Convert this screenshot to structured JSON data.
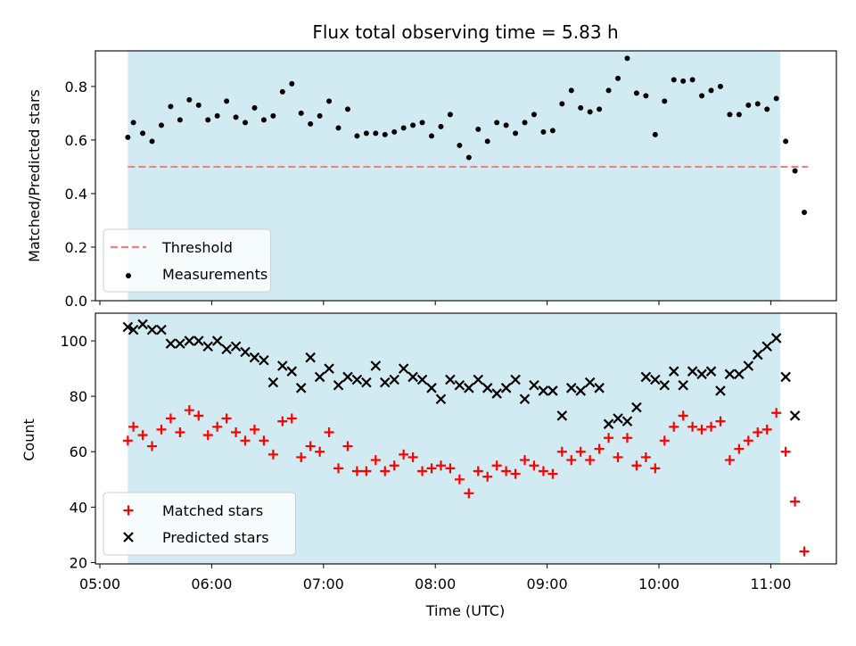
{
  "chart_data": [
    {
      "type": "scatter",
      "title": "Flux total observing time = 5.83 h",
      "ylabel": "Matched/Predicted stars",
      "xlabel": "",
      "ylim": [
        0.0,
        0.933
      ],
      "x_ticks": [
        "05:00",
        "06:00",
        "07:00",
        "08:00",
        "09:00",
        "10:00",
        "11:00"
      ],
      "y_ticks": [
        "0.0",
        "0.2",
        "0.4",
        "0.6",
        "0.8"
      ],
      "shaded_span": {
        "start": "05:15",
        "end": "11:05",
        "color": "#add8e6"
      },
      "legend_position": "lower left",
      "threshold": {
        "name": "Threshold",
        "value": 0.5,
        "color": "#f08080",
        "style": "dashed"
      },
      "series": [
        {
          "name": "Measurements",
          "color": "#000000",
          "marker": "dot",
          "points": [
            [
              "05:15",
              0.61
            ],
            [
              "05:18",
              0.665
            ],
            [
              "05:23",
              0.625
            ],
            [
              "05:28",
              0.595
            ],
            [
              "05:33",
              0.655
            ],
            [
              "05:38",
              0.725
            ],
            [
              "05:43",
              0.675
            ],
            [
              "05:48",
              0.75
            ],
            [
              "05:53",
              0.73
            ],
            [
              "05:58",
              0.675
            ],
            [
              "06:03",
              0.69
            ],
            [
              "06:08",
              0.745
            ],
            [
              "06:13",
              0.685
            ],
            [
              "06:18",
              0.665
            ],
            [
              "06:23",
              0.72
            ],
            [
              "06:28",
              0.675
            ],
            [
              "06:33",
              0.69
            ],
            [
              "06:38",
              0.78
            ],
            [
              "06:43",
              0.81
            ],
            [
              "06:48",
              0.7
            ],
            [
              "06:53",
              0.66
            ],
            [
              "06:58",
              0.69
            ],
            [
              "07:03",
              0.745
            ],
            [
              "07:08",
              0.645
            ],
            [
              "07:13",
              0.715
            ],
            [
              "07:18",
              0.615
            ],
            [
              "07:23",
              0.625
            ],
            [
              "07:28",
              0.625
            ],
            [
              "07:33",
              0.62
            ],
            [
              "07:38",
              0.63
            ],
            [
              "07:43",
              0.645
            ],
            [
              "07:48",
              0.655
            ],
            [
              "07:53",
              0.665
            ],
            [
              "07:58",
              0.615
            ],
            [
              "08:03",
              0.65
            ],
            [
              "08:08",
              0.695
            ],
            [
              "08:13",
              0.58
            ],
            [
              "08:18",
              0.535
            ],
            [
              "08:23",
              0.64
            ],
            [
              "08:28",
              0.595
            ],
            [
              "08:33",
              0.665
            ],
            [
              "08:38",
              0.655
            ],
            [
              "08:43",
              0.625
            ],
            [
              "08:48",
              0.665
            ],
            [
              "08:53",
              0.695
            ],
            [
              "08:58",
              0.63
            ],
            [
              "09:03",
              0.635
            ],
            [
              "09:08",
              0.735
            ],
            [
              "09:13",
              0.785
            ],
            [
              "09:18",
              0.72
            ],
            [
              "09:23",
              0.705
            ],
            [
              "09:28",
              0.715
            ],
            [
              "09:33",
              0.785
            ],
            [
              "09:38",
              0.83
            ],
            [
              "09:43",
              0.905
            ],
            [
              "09:48",
              0.775
            ],
            [
              "09:53",
              0.765
            ],
            [
              "09:58",
              0.62
            ],
            [
              "10:03",
              0.745
            ],
            [
              "10:08",
              0.825
            ],
            [
              "10:13",
              0.82
            ],
            [
              "10:18",
              0.825
            ],
            [
              "10:23",
              0.765
            ],
            [
              "10:28",
              0.785
            ],
            [
              "10:33",
              0.8
            ],
            [
              "10:38",
              0.695
            ],
            [
              "10:43",
              0.695
            ],
            [
              "10:48",
              0.73
            ],
            [
              "10:53",
              0.735
            ],
            [
              "10:58",
              0.715
            ],
            [
              "11:03",
              0.755
            ],
            [
              "11:08",
              0.595
            ],
            [
              "11:13",
              0.485
            ],
            [
              "11:18",
              0.33
            ]
          ]
        }
      ]
    },
    {
      "type": "scatter",
      "title": "",
      "xlabel": "Time (UTC)",
      "ylabel": "Count",
      "ylim": [
        19.5,
        110.0
      ],
      "x_ticks": [
        "05:00",
        "06:00",
        "07:00",
        "08:00",
        "09:00",
        "10:00",
        "11:00"
      ],
      "y_ticks": [
        "20",
        "40",
        "60",
        "80",
        "100"
      ],
      "shaded_span": {
        "start": "05:15",
        "end": "11:05",
        "color": "#add8e6"
      },
      "legend_position": "lower left",
      "series": [
        {
          "name": "Matched stars",
          "color": "#ff0000",
          "marker": "plus",
          "points": [
            [
              "05:15",
              64
            ],
            [
              "05:18",
              69
            ],
            [
              "05:23",
              66
            ],
            [
              "05:28",
              62
            ],
            [
              "05:33",
              68
            ],
            [
              "05:38",
              72
            ],
            [
              "05:43",
              67
            ],
            [
              "05:48",
              75
            ],
            [
              "05:53",
              73
            ],
            [
              "05:58",
              66
            ],
            [
              "06:03",
              69
            ],
            [
              "06:08",
              72
            ],
            [
              "06:13",
              67
            ],
            [
              "06:18",
              64
            ],
            [
              "06:23",
              68
            ],
            [
              "06:28",
              64
            ],
            [
              "06:33",
              59
            ],
            [
              "06:38",
              71
            ],
            [
              "06:43",
              72
            ],
            [
              "06:48",
              58
            ],
            [
              "06:53",
              62
            ],
            [
              "06:58",
              60
            ],
            [
              "07:03",
              67
            ],
            [
              "07:08",
              54
            ],
            [
              "07:13",
              62
            ],
            [
              "07:18",
              53
            ],
            [
              "07:23",
              53
            ],
            [
              "07:28",
              57
            ],
            [
              "07:33",
              53
            ],
            [
              "07:38",
              55
            ],
            [
              "07:43",
              59
            ],
            [
              "07:48",
              58
            ],
            [
              "07:53",
              53
            ],
            [
              "07:58",
              54
            ],
            [
              "08:03",
              55
            ],
            [
              "08:08",
              54
            ],
            [
              "08:13",
              50
            ],
            [
              "08:18",
              45
            ],
            [
              "08:23",
              53
            ],
            [
              "08:28",
              51
            ],
            [
              "08:33",
              55
            ],
            [
              "08:38",
              53
            ],
            [
              "08:43",
              52
            ],
            [
              "08:48",
              57
            ],
            [
              "08:53",
              55
            ],
            [
              "08:58",
              53
            ],
            [
              "09:03",
              52
            ],
            [
              "09:08",
              60
            ],
            [
              "09:13",
              57
            ],
            [
              "09:18",
              60
            ],
            [
              "09:23",
              57
            ],
            [
              "09:28",
              61
            ],
            [
              "09:33",
              65
            ],
            [
              "09:38",
              58
            ],
            [
              "09:43",
              65
            ],
            [
              "09:48",
              55
            ],
            [
              "09:53",
              58
            ],
            [
              "09:58",
              54
            ],
            [
              "10:03",
              64
            ],
            [
              "10:08",
              69
            ],
            [
              "10:13",
              73
            ],
            [
              "10:18",
              69
            ],
            [
              "10:23",
              68
            ],
            [
              "10:28",
              69
            ],
            [
              "10:33",
              71
            ],
            [
              "10:38",
              57
            ],
            [
              "10:43",
              61
            ],
            [
              "10:48",
              64
            ],
            [
              "10:53",
              67
            ],
            [
              "10:58",
              68
            ],
            [
              "11:03",
              74
            ],
            [
              "11:08",
              60
            ],
            [
              "11:13",
              42
            ],
            [
              "11:18",
              24
            ]
          ]
        },
        {
          "name": "Predicted stars",
          "color": "#000000",
          "marker": "x",
          "points": [
            [
              "05:15",
              105
            ],
            [
              "05:18",
              104
            ],
            [
              "05:23",
              106
            ],
            [
              "05:28",
              104
            ],
            [
              "05:33",
              104
            ],
            [
              "05:38",
              99
            ],
            [
              "05:43",
              99
            ],
            [
              "05:48",
              100
            ],
            [
              "05:53",
              100
            ],
            [
              "05:58",
              98
            ],
            [
              "06:03",
              100
            ],
            [
              "06:08",
              97
            ],
            [
              "06:13",
              98
            ],
            [
              "06:18",
              96
            ],
            [
              "06:23",
              94
            ],
            [
              "06:28",
              93
            ],
            [
              "06:33",
              85
            ],
            [
              "06:38",
              91
            ],
            [
              "06:43",
              89
            ],
            [
              "06:48",
              83
            ],
            [
              "06:53",
              94
            ],
            [
              "06:58",
              87
            ],
            [
              "07:03",
              90
            ],
            [
              "07:08",
              84
            ],
            [
              "07:13",
              87
            ],
            [
              "07:18",
              86
            ],
            [
              "07:23",
              85
            ],
            [
              "07:28",
              91
            ],
            [
              "07:33",
              85
            ],
            [
              "07:38",
              86
            ],
            [
              "07:43",
              90
            ],
            [
              "07:48",
              87
            ],
            [
              "07:53",
              86
            ],
            [
              "07:58",
              83
            ],
            [
              "08:03",
              79
            ],
            [
              "08:08",
              86
            ],
            [
              "08:13",
              84
            ],
            [
              "08:18",
              83
            ],
            [
              "08:23",
              86
            ],
            [
              "08:28",
              83
            ],
            [
              "08:33",
              81
            ],
            [
              "08:38",
              83
            ],
            [
              "08:43",
              86
            ],
            [
              "08:48",
              79
            ],
            [
              "08:53",
              84
            ],
            [
              "08:58",
              82
            ],
            [
              "09:03",
              82
            ],
            [
              "09:08",
              73
            ],
            [
              "09:13",
              83
            ],
            [
              "09:18",
              82
            ],
            [
              "09:23",
              85
            ],
            [
              "09:28",
              83
            ],
            [
              "09:33",
              70
            ],
            [
              "09:38",
              72
            ],
            [
              "09:43",
              71
            ],
            [
              "09:48",
              76
            ],
            [
              "09:53",
              87
            ],
            [
              "09:58",
              86
            ],
            [
              "10:03",
              84
            ],
            [
              "10:08",
              89
            ],
            [
              "10:13",
              84
            ],
            [
              "10:18",
              89
            ],
            [
              "10:23",
              88
            ],
            [
              "10:28",
              89
            ],
            [
              "10:33",
              82
            ],
            [
              "10:38",
              88
            ],
            [
              "10:43",
              88
            ],
            [
              "10:48",
              91
            ],
            [
              "10:53",
              95
            ],
            [
              "10:58",
              98
            ],
            [
              "11:03",
              101
            ],
            [
              "11:08",
              87
            ],
            [
              "11:13",
              73
            ]
          ]
        }
      ]
    }
  ]
}
